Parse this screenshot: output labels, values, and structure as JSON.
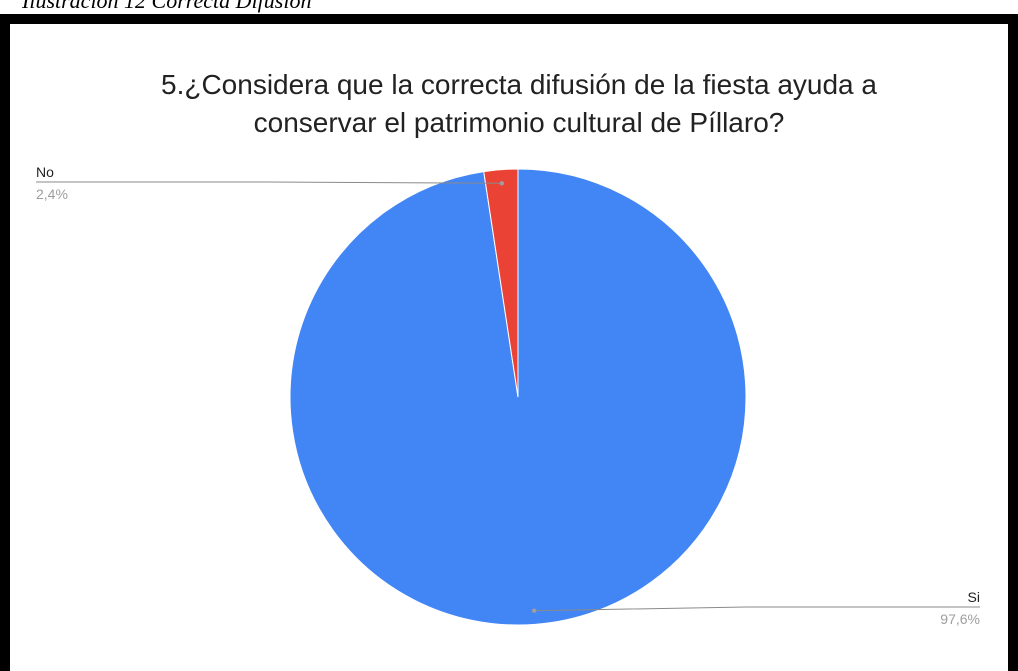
{
  "caption": "Ilustración 12 Correcta Difusión",
  "chart_data": {
    "type": "pie",
    "title": "5.¿Considera que la correcta difusión de la fiesta ayuda a conservar el patrimonio cultural de Píllaro?",
    "title_lines": [
      "5.¿Considera que la correcta difusión de la fiesta ayuda a",
      "conservar el patrimonio cultural de Píllaro?"
    ],
    "slices": [
      {
        "label": "Si",
        "value": 97.6,
        "value_label": "97,6%",
        "color": "#4285f4"
      },
      {
        "label": "No",
        "value": 2.4,
        "value_label": "2,4%",
        "color": "#ea4335"
      }
    ],
    "legend": "none"
  }
}
